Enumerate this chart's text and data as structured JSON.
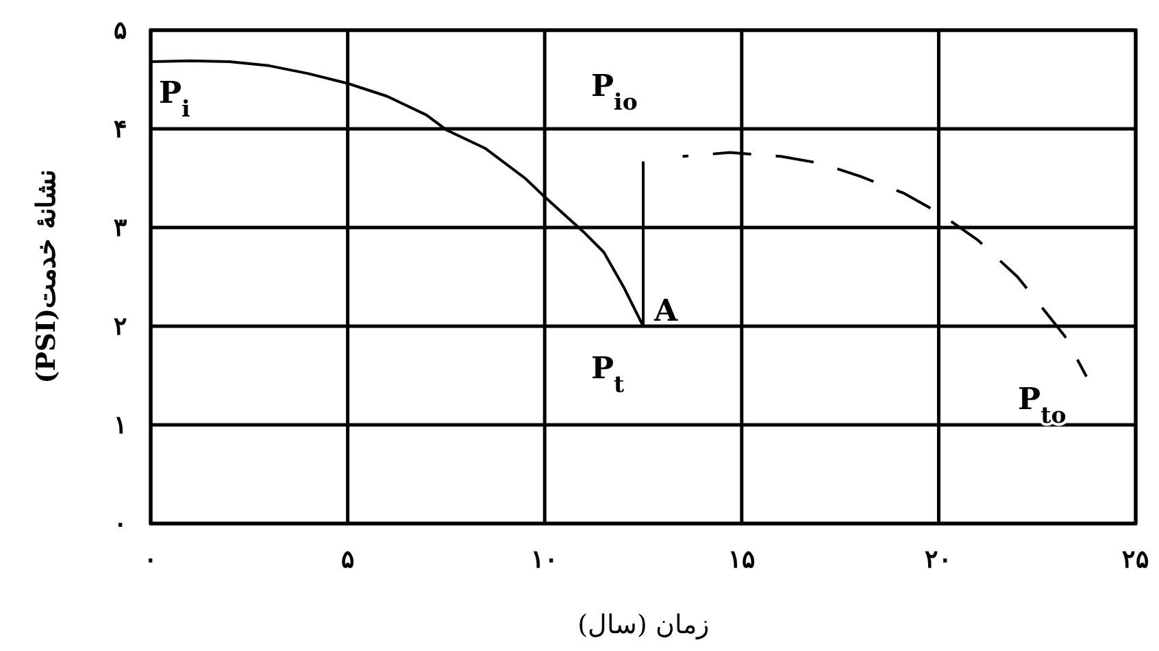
{
  "chart_data": {
    "type": "line",
    "xlabel": "زمان (سال)",
    "ylabel": "نشانۀ خدمت(PSI)",
    "xlim": [
      0,
      25
    ],
    "ylim": [
      0,
      5
    ],
    "xticks": [
      {
        "value": 0,
        "label": "۰"
      },
      {
        "value": 5,
        "label": "۵"
      },
      {
        "value": 10,
        "label": "۱۰"
      },
      {
        "value": 15,
        "label": "۱۵"
      },
      {
        "value": 20,
        "label": "۲۰"
      },
      {
        "value": 25,
        "label": "۲۵"
      }
    ],
    "yticks": [
      {
        "value": 0,
        "label": "۰"
      },
      {
        "value": 1,
        "label": "۱"
      },
      {
        "value": 2,
        "label": "۲"
      },
      {
        "value": 3,
        "label": "۳"
      },
      {
        "value": 4,
        "label": "۴"
      },
      {
        "value": 5,
        "label": "۵"
      }
    ],
    "grid": true,
    "series": [
      {
        "color": "#000000",
        "line_style": "solid",
        "x": [
          0,
          1,
          2,
          3,
          4,
          5,
          6,
          7,
          7.5,
          8.5,
          9.5,
          10,
          11,
          11.5,
          12,
          12.5,
          12.5
        ],
        "values": [
          4.68,
          4.69,
          4.68,
          4.64,
          4.56,
          4.46,
          4.33,
          4.14,
          3.99,
          3.8,
          3.5,
          3.31,
          2.95,
          2.75,
          2.4,
          2.0,
          3.67
        ]
      },
      {
        "color": "#000000",
        "line_style": "dashed",
        "x": [
          13.5,
          14.7,
          16,
          17,
          18,
          19.1,
          20,
          21,
          22,
          22.5,
          23.2,
          23.75
        ],
        "values": [
          3.72,
          3.76,
          3.72,
          3.65,
          3.52,
          3.35,
          3.15,
          2.87,
          2.5,
          2.25,
          1.9,
          1.49
        ]
      }
    ],
    "annotations": [
      {
        "text": "P$_{i}$",
        "x": 0,
        "y": 4.68
      },
      {
        "text": "P$_{io}$",
        "x": 12.5,
        "y": 3.67
      },
      {
        "text": "A",
        "x": 12.5,
        "y": 2.0
      },
      {
        "text": "P$_{t}$",
        "x": 12.5,
        "y": 2.0
      },
      {
        "text": "P$_{to}$",
        "x": 23.75,
        "y": 1.49
      }
    ]
  }
}
